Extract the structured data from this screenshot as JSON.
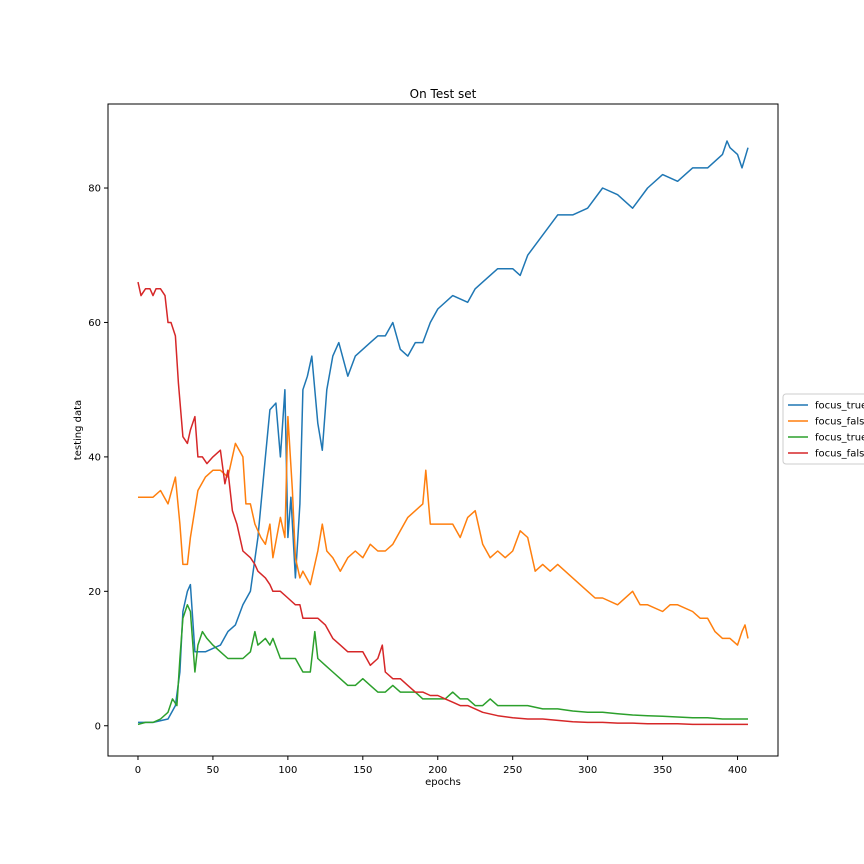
{
  "chart_data": {
    "type": "line",
    "title": "On Test set",
    "xlabel": "epochs",
    "ylabel": "testing data",
    "xlim": [
      -20,
      427
    ],
    "ylim": [
      -4.5,
      92.5
    ],
    "xticks": [
      0,
      50,
      100,
      150,
      200,
      250,
      300,
      350,
      400
    ],
    "yticks": [
      0,
      20,
      40,
      60,
      80
    ],
    "grid": false,
    "legend_position": "right, outside plot (clipped)",
    "series": [
      {
        "name": "focus_true",
        "color": "#1f77b4",
        "points": [
          [
            0,
            0.5
          ],
          [
            10,
            0.5
          ],
          [
            20,
            1
          ],
          [
            25,
            3
          ],
          [
            28,
            8
          ],
          [
            30,
            17
          ],
          [
            33,
            20
          ],
          [
            35,
            21
          ],
          [
            38,
            11
          ],
          [
            45,
            11
          ],
          [
            55,
            12
          ],
          [
            60,
            14
          ],
          [
            65,
            15
          ],
          [
            70,
            18
          ],
          [
            75,
            20
          ],
          [
            80,
            28
          ],
          [
            85,
            40
          ],
          [
            88,
            47
          ],
          [
            92,
            48
          ],
          [
            95,
            40
          ],
          [
            98,
            50
          ],
          [
            100,
            28
          ],
          [
            102,
            34
          ],
          [
            105,
            22
          ],
          [
            108,
            33
          ],
          [
            110,
            50
          ],
          [
            113,
            52
          ],
          [
            116,
            55
          ],
          [
            120,
            45
          ],
          [
            123,
            41
          ],
          [
            126,
            50
          ],
          [
            130,
            55
          ],
          [
            134,
            57
          ],
          [
            140,
            52
          ],
          [
            145,
            55
          ],
          [
            150,
            56
          ],
          [
            155,
            57
          ],
          [
            160,
            58
          ],
          [
            165,
            58
          ],
          [
            170,
            60
          ],
          [
            175,
            56
          ],
          [
            180,
            55
          ],
          [
            185,
            57
          ],
          [
            190,
            57
          ],
          [
            195,
            60
          ],
          [
            200,
            62
          ],
          [
            210,
            64
          ],
          [
            220,
            63
          ],
          [
            225,
            65
          ],
          [
            230,
            66
          ],
          [
            240,
            68
          ],
          [
            250,
            68
          ],
          [
            255,
            67
          ],
          [
            260,
            70
          ],
          [
            270,
            73
          ],
          [
            280,
            76
          ],
          [
            290,
            76
          ],
          [
            300,
            77
          ],
          [
            310,
            80
          ],
          [
            320,
            79
          ],
          [
            330,
            77
          ],
          [
            340,
            80
          ],
          [
            350,
            82
          ],
          [
            360,
            81
          ],
          [
            370,
            83
          ],
          [
            380,
            83
          ],
          [
            390,
            85
          ],
          [
            393,
            87
          ],
          [
            395,
            86
          ],
          [
            400,
            85
          ],
          [
            403,
            83
          ],
          [
            407,
            86
          ]
        ]
      },
      {
        "name": "focus_false",
        "color": "#ff7f0e",
        "points": [
          [
            0,
            34
          ],
          [
            10,
            34
          ],
          [
            15,
            35
          ],
          [
            20,
            33
          ],
          [
            25,
            37
          ],
          [
            28,
            30
          ],
          [
            30,
            24
          ],
          [
            33,
            24
          ],
          [
            35,
            28
          ],
          [
            40,
            35
          ],
          [
            45,
            37
          ],
          [
            50,
            38
          ],
          [
            55,
            38
          ],
          [
            60,
            37
          ],
          [
            65,
            42
          ],
          [
            70,
            40
          ],
          [
            72,
            33
          ],
          [
            75,
            33
          ],
          [
            78,
            30
          ],
          [
            82,
            28
          ],
          [
            85,
            27
          ],
          [
            88,
            30
          ],
          [
            90,
            25
          ],
          [
            95,
            31
          ],
          [
            98,
            28
          ],
          [
            100,
            46
          ],
          [
            103,
            35
          ],
          [
            105,
            25
          ],
          [
            108,
            22
          ],
          [
            110,
            23
          ],
          [
            115,
            21
          ],
          [
            120,
            26
          ],
          [
            123,
            30
          ],
          [
            126,
            26
          ],
          [
            130,
            25
          ],
          [
            135,
            23
          ],
          [
            140,
            25
          ],
          [
            145,
            26
          ],
          [
            150,
            25
          ],
          [
            155,
            27
          ],
          [
            160,
            26
          ],
          [
            165,
            26
          ],
          [
            170,
            27
          ],
          [
            175,
            29
          ],
          [
            180,
            31
          ],
          [
            185,
            32
          ],
          [
            190,
            33
          ],
          [
            192,
            38
          ],
          [
            195,
            30
          ],
          [
            200,
            30
          ],
          [
            210,
            30
          ],
          [
            215,
            28
          ],
          [
            220,
            31
          ],
          [
            225,
            32
          ],
          [
            230,
            27
          ],
          [
            235,
            25
          ],
          [
            240,
            26
          ],
          [
            245,
            25
          ],
          [
            250,
            26
          ],
          [
            255,
            29
          ],
          [
            260,
            28
          ],
          [
            265,
            23
          ],
          [
            270,
            24
          ],
          [
            275,
            23
          ],
          [
            280,
            24
          ],
          [
            285,
            23
          ],
          [
            290,
            22
          ],
          [
            300,
            20
          ],
          [
            305,
            19
          ],
          [
            310,
            19
          ],
          [
            320,
            18
          ],
          [
            330,
            20
          ],
          [
            335,
            18
          ],
          [
            340,
            18
          ],
          [
            350,
            17
          ],
          [
            355,
            18
          ],
          [
            360,
            18
          ],
          [
            370,
            17
          ],
          [
            375,
            16
          ],
          [
            380,
            16
          ],
          [
            385,
            14
          ],
          [
            390,
            13
          ],
          [
            395,
            13
          ],
          [
            400,
            12
          ],
          [
            403,
            14
          ],
          [
            405,
            15
          ],
          [
            407,
            13
          ]
        ]
      },
      {
        "name": "focus_true",
        "color": "#2ca02c",
        "points": [
          [
            0,
            0.2
          ],
          [
            5,
            0.5
          ],
          [
            10,
            0.5
          ],
          [
            15,
            1
          ],
          [
            20,
            2
          ],
          [
            23,
            4
          ],
          [
            26,
            3
          ],
          [
            28,
            10
          ],
          [
            30,
            16
          ],
          [
            33,
            18
          ],
          [
            35,
            17
          ],
          [
            38,
            8
          ],
          [
            40,
            12
          ],
          [
            43,
            14
          ],
          [
            46,
            13
          ],
          [
            50,
            12
          ],
          [
            55,
            11
          ],
          [
            60,
            10
          ],
          [
            65,
            10
          ],
          [
            70,
            10
          ],
          [
            75,
            11
          ],
          [
            78,
            14
          ],
          [
            80,
            12
          ],
          [
            85,
            13
          ],
          [
            88,
            12
          ],
          [
            90,
            13
          ],
          [
            95,
            10
          ],
          [
            100,
            10
          ],
          [
            105,
            10
          ],
          [
            110,
            8
          ],
          [
            115,
            8
          ],
          [
            118,
            14
          ],
          [
            120,
            10
          ],
          [
            125,
            9
          ],
          [
            130,
            8
          ],
          [
            135,
            7
          ],
          [
            140,
            6
          ],
          [
            145,
            6
          ],
          [
            150,
            7
          ],
          [
            155,
            6
          ],
          [
            160,
            5
          ],
          [
            165,
            5
          ],
          [
            170,
            6
          ],
          [
            175,
            5
          ],
          [
            180,
            5
          ],
          [
            185,
            5
          ],
          [
            190,
            4
          ],
          [
            195,
            4
          ],
          [
            200,
            4
          ],
          [
            205,
            4
          ],
          [
            210,
            5
          ],
          [
            215,
            4
          ],
          [
            220,
            4
          ],
          [
            225,
            3
          ],
          [
            230,
            3
          ],
          [
            235,
            4
          ],
          [
            240,
            3
          ],
          [
            250,
            3
          ],
          [
            260,
            3
          ],
          [
            270,
            2.5
          ],
          [
            280,
            2.5
          ],
          [
            290,
            2.2
          ],
          [
            300,
            2
          ],
          [
            310,
            2
          ],
          [
            320,
            1.8
          ],
          [
            330,
            1.6
          ],
          [
            340,
            1.5
          ],
          [
            350,
            1.4
          ],
          [
            360,
            1.3
          ],
          [
            370,
            1.2
          ],
          [
            380,
            1.2
          ],
          [
            390,
            1
          ],
          [
            400,
            1
          ],
          [
            407,
            1
          ]
        ]
      },
      {
        "name": "focus_false",
        "color": "#d62728",
        "points": [
          [
            0,
            66
          ],
          [
            2,
            64
          ],
          [
            5,
            65
          ],
          [
            8,
            65
          ],
          [
            10,
            64
          ],
          [
            12,
            65
          ],
          [
            15,
            65
          ],
          [
            18,
            64
          ],
          [
            20,
            60
          ],
          [
            22,
            60
          ],
          [
            25,
            58
          ],
          [
            27,
            51
          ],
          [
            30,
            43
          ],
          [
            33,
            42
          ],
          [
            35,
            44
          ],
          [
            38,
            46
          ],
          [
            40,
            40
          ],
          [
            43,
            40
          ],
          [
            46,
            39
          ],
          [
            50,
            40
          ],
          [
            55,
            41
          ],
          [
            58,
            36
          ],
          [
            60,
            38
          ],
          [
            63,
            32
          ],
          [
            66,
            30
          ],
          [
            70,
            26
          ],
          [
            75,
            25
          ],
          [
            78,
            24
          ],
          [
            80,
            23
          ],
          [
            85,
            22
          ],
          [
            88,
            21
          ],
          [
            90,
            20
          ],
          [
            95,
            20
          ],
          [
            100,
            19
          ],
          [
            105,
            18
          ],
          [
            108,
            18
          ],
          [
            110,
            16
          ],
          [
            115,
            16
          ],
          [
            120,
            16
          ],
          [
            125,
            15
          ],
          [
            130,
            13
          ],
          [
            135,
            12
          ],
          [
            140,
            11
          ],
          [
            145,
            11
          ],
          [
            150,
            11
          ],
          [
            155,
            9
          ],
          [
            160,
            10
          ],
          [
            163,
            12
          ],
          [
            165,
            8
          ],
          [
            170,
            7
          ],
          [
            175,
            7
          ],
          [
            180,
            6
          ],
          [
            185,
            5
          ],
          [
            190,
            5
          ],
          [
            195,
            4.5
          ],
          [
            200,
            4.5
          ],
          [
            205,
            4
          ],
          [
            210,
            3.5
          ],
          [
            215,
            3
          ],
          [
            220,
            3
          ],
          [
            225,
            2.5
          ],
          [
            230,
            2
          ],
          [
            240,
            1.5
          ],
          [
            250,
            1.2
          ],
          [
            260,
            1
          ],
          [
            270,
            1
          ],
          [
            280,
            0.8
          ],
          [
            290,
            0.6
          ],
          [
            300,
            0.5
          ],
          [
            310,
            0.5
          ],
          [
            320,
            0.4
          ],
          [
            330,
            0.4
          ],
          [
            340,
            0.3
          ],
          [
            350,
            0.3
          ],
          [
            360,
            0.3
          ],
          [
            370,
            0.2
          ],
          [
            380,
            0.2
          ],
          [
            390,
            0.2
          ],
          [
            400,
            0.2
          ],
          [
            407,
            0.2
          ]
        ]
      }
    ]
  }
}
